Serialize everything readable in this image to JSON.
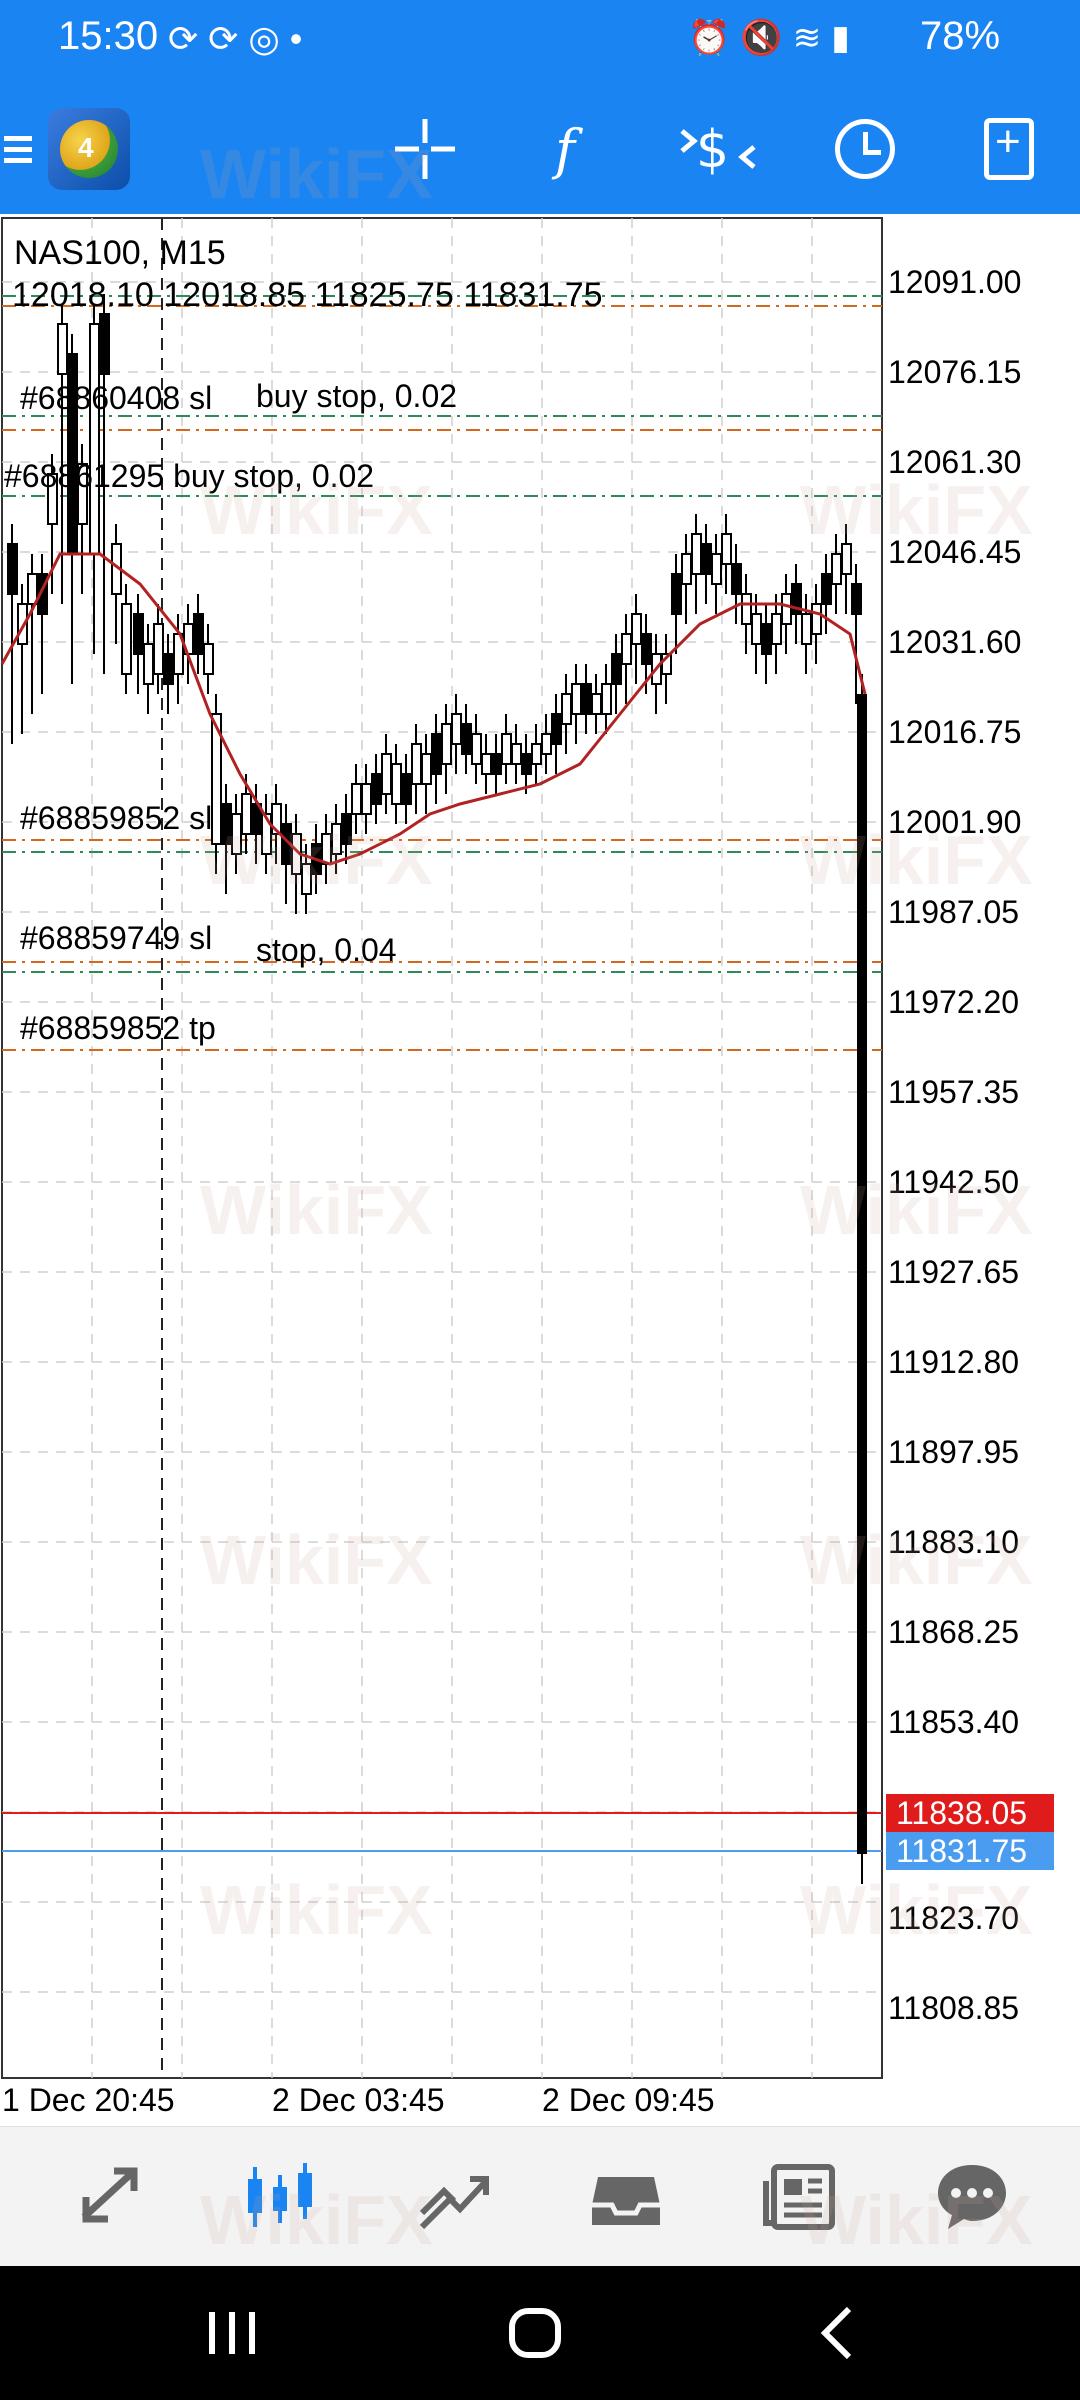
{
  "status_bar": {
    "time": "15:30",
    "battery": "78%",
    "left_icons": [
      "sync-icon",
      "sync-icon",
      "instagram-icon",
      "dot-icon"
    ],
    "right_icons": [
      "alarm-icon",
      "mute-icon",
      "wifi-icon",
      "signal-icon",
      "signal-icon",
      "battery-icon"
    ]
  },
  "toolbar": {
    "icons": [
      "menu-icon",
      "metatrader-logo",
      "crosshair-icon",
      "function-icon",
      "trade-icon",
      "period-icon",
      "new-order-icon"
    ],
    "function_glyph": "f"
  },
  "chart": {
    "symbol": "NAS100, M15",
    "ohlc": "12018.10 12018.85 11825.75 11831.75",
    "orders": [
      {
        "text": "#68860408 sl"
      },
      {
        "text": "buy stop, 0.02"
      },
      {
        "text": "#68861295 buy stop, 0.02"
      },
      {
        "text": "#68859852 sl"
      },
      {
        "text": "#68859749 sl"
      },
      {
        "text": "stop, 0.04"
      },
      {
        "text": "#68859852 tp"
      }
    ],
    "price_axis": [
      "12091.00",
      "12076.15",
      "12061.30",
      "12046.45",
      "12031.60",
      "12016.75",
      "12001.90",
      "11987.05",
      "11972.20",
      "11957.35",
      "11942.50",
      "11927.65",
      "11912.80",
      "11897.95",
      "11883.10",
      "11868.25",
      "11853.40",
      "11823.70",
      "11808.85"
    ],
    "bid_price": "11838.05",
    "ask_price": "11831.75",
    "time_axis": [
      "1 Dec 20:45",
      "2 Dec 03:45",
      "2 Dec 09:45"
    ],
    "colors": {
      "bid": "#e01b1b",
      "ask": "#4a9cf0",
      "ma": "#b22222",
      "sl_line": "#d2691e",
      "tp_line": "#2e8b57"
    }
  },
  "bottom_nav": {
    "items": [
      {
        "name": "quotes",
        "icon": "quotes-icon",
        "active": false
      },
      {
        "name": "chart",
        "icon": "candlestick-icon",
        "active": true
      },
      {
        "name": "trade",
        "icon": "trade-trend-icon",
        "active": false
      },
      {
        "name": "history",
        "icon": "inbox-icon",
        "active": false
      },
      {
        "name": "news",
        "icon": "news-icon",
        "active": false
      },
      {
        "name": "messages",
        "icon": "chat-icon",
        "active": false
      }
    ]
  },
  "watermark": "WikiFX"
}
